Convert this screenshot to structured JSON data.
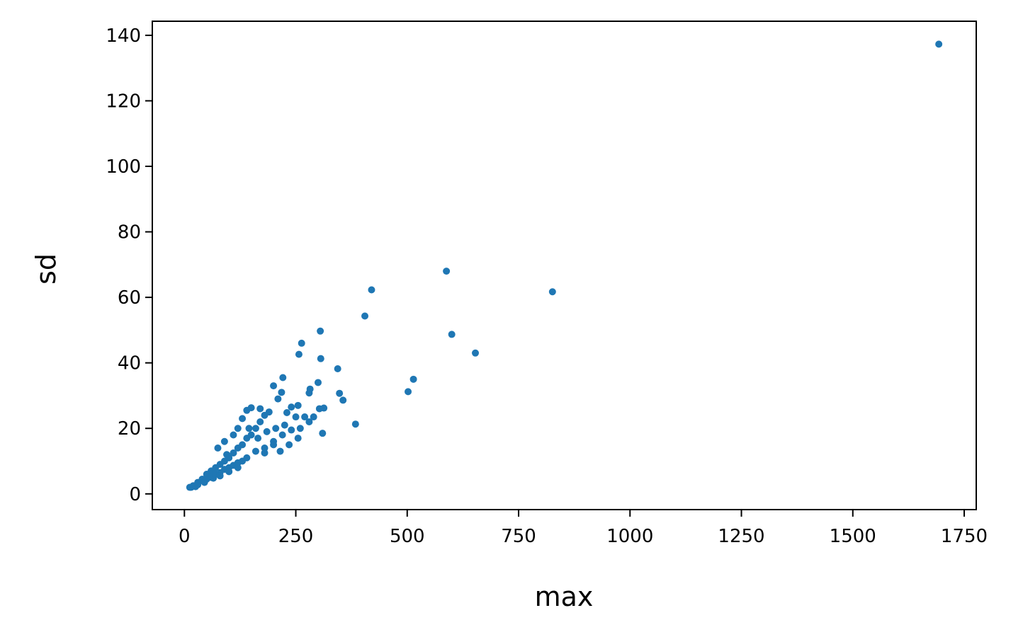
{
  "chart_data": {
    "type": "scatter",
    "x_label": "max",
    "y_label": "sd",
    "xlim": [
      -72,
      1777
    ],
    "ylim": [
      -4.8,
      144.3
    ],
    "xticks": [
      0,
      250,
      500,
      750,
      1000,
      1250,
      1500,
      1750
    ],
    "yticks": [
      0,
      20,
      40,
      60,
      80,
      100,
      120,
      140
    ],
    "series": [
      {
        "color": "#1f77b4",
        "x": [
          1693,
          588,
          420,
          826,
          405,
          305,
          263,
          600,
          257,
          653,
          306,
          344,
          221,
          514,
          300,
          200,
          282,
          348,
          502,
          218,
          356,
          280,
          210,
          255,
          303,
          313,
          240,
          384,
          310,
          270,
          290,
          250,
          230,
          12,
          15,
          20,
          25,
          30,
          30,
          40,
          45,
          50,
          50,
          60,
          60,
          65,
          70,
          70,
          75,
          80,
          80,
          80,
          90,
          90,
          90,
          95,
          100,
          100,
          100,
          110,
          110,
          110,
          120,
          120,
          120,
          120,
          130,
          130,
          130,
          140,
          140,
          140,
          145,
          150,
          150,
          160,
          160,
          165,
          170,
          170,
          180,
          180,
          180,
          185,
          190,
          200,
          200,
          205,
          215,
          220,
          225,
          235,
          240,
          255,
          260,
          280
        ],
        "y": [
          137.3,
          68,
          62.3,
          61.7,
          54.3,
          49.7,
          46,
          48.7,
          42.6,
          43,
          41.3,
          38.2,
          35.5,
          35,
          34,
          33,
          32,
          30.7,
          31.2,
          31,
          28.6,
          30.8,
          29,
          27,
          26,
          26.2,
          26.5,
          21.3,
          18.5,
          23.5,
          23.5,
          23.5,
          24.8,
          2,
          2,
          2.5,
          2.2,
          3.5,
          2.8,
          4.5,
          3.5,
          6,
          4.5,
          7,
          5,
          4.8,
          8,
          6,
          14,
          9,
          6.5,
          5.5,
          10,
          7.5,
          16,
          12,
          11,
          8,
          6.8,
          12.5,
          8.7,
          18,
          14,
          9.5,
          8,
          20,
          15,
          10,
          23,
          17,
          11,
          25.5,
          20,
          18,
          26.3,
          20,
          13,
          17,
          22,
          26,
          24,
          14,
          12.5,
          19,
          25,
          16,
          15,
          20,
          13,
          18,
          21,
          15,
          19.5,
          17,
          20,
          22
        ]
      }
    ]
  }
}
